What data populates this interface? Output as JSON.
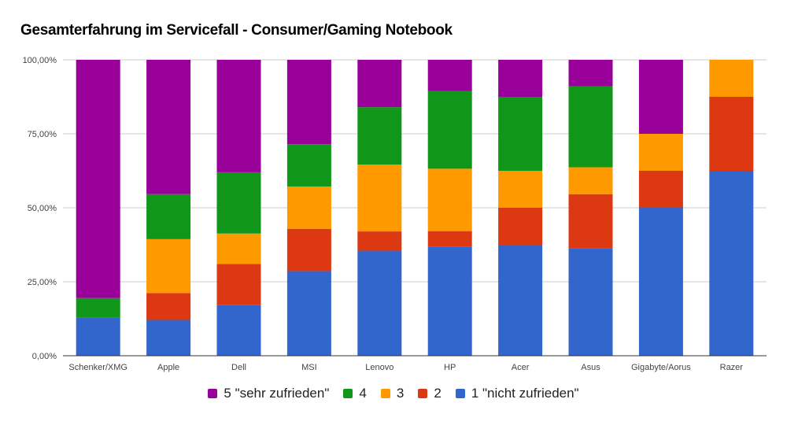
{
  "chart_data": {
    "type": "bar",
    "stacked": true,
    "title": "Gesamterfahrung im Servicefall - Consumer/Gaming Notebook",
    "xlabel": "",
    "ylabel": "",
    "ylim": [
      0,
      100
    ],
    "y_ticks": [
      "0,00%",
      "25,00%",
      "50,00%",
      "75,00%",
      "100,00%"
    ],
    "y_tick_values": [
      0,
      25,
      50,
      75,
      100
    ],
    "grid": true,
    "legend_position": "bottom",
    "categories": [
      "Schenker/XMG",
      "Apple",
      "Dell",
      "MSI",
      "Lenovo",
      "HP",
      "Acer",
      "Asus",
      "Gigabyte/Aorus",
      "Razer"
    ],
    "series": [
      {
        "name": "1 \"nicht zufrieden\"",
        "color": "#3366cc",
        "values": [
          13.0,
          12.1,
          17.2,
          28.6,
          35.5,
          36.8,
          37.5,
          36.4,
          50.0,
          62.5
        ]
      },
      {
        "name": "2",
        "color": "#dc3912",
        "values": [
          0.0,
          9.1,
          13.8,
          14.3,
          6.5,
          5.3,
          12.5,
          18.2,
          12.5,
          25.0
        ]
      },
      {
        "name": "3",
        "color": "#ff9900",
        "values": [
          0.0,
          18.2,
          10.3,
          14.3,
          22.6,
          21.1,
          12.5,
          9.1,
          12.5,
          12.5
        ]
      },
      {
        "name": "4",
        "color": "#109618",
        "values": [
          6.5,
          15.2,
          20.7,
          14.3,
          19.4,
          26.3,
          25.0,
          27.3,
          0.0,
          0.0
        ]
      },
      {
        "name": "5 \"sehr zufrieden\"",
        "color": "#990099",
        "values": [
          80.5,
          45.4,
          38.0,
          28.5,
          16.0,
          10.5,
          12.5,
          9.0,
          25.0,
          0.0
        ]
      }
    ],
    "legend_order": [
      4,
      3,
      2,
      1,
      0
    ]
  }
}
